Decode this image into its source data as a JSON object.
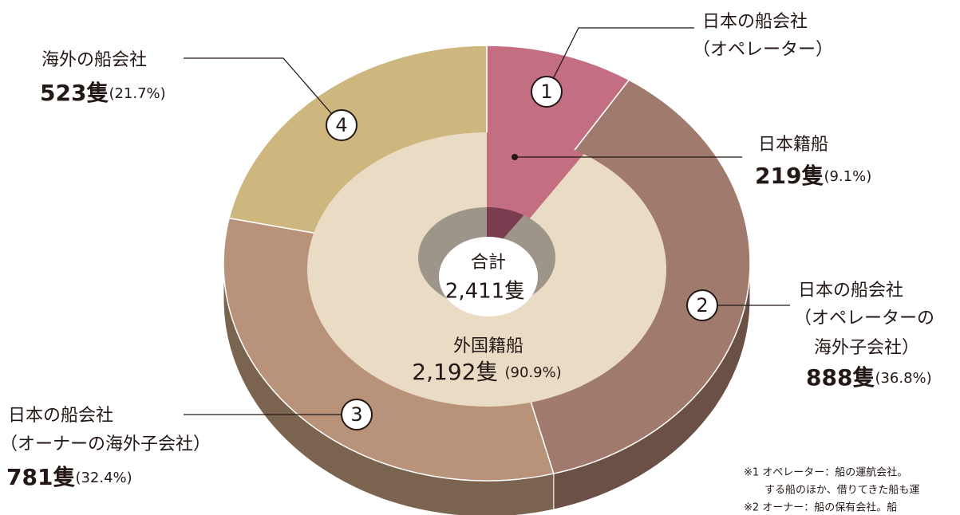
{
  "chart_data": {
    "type": "donut",
    "total_label": "合計",
    "total": 2411,
    "total_value_label": "2,411隻",
    "outer": {
      "markers": [
        "1",
        "2",
        "3",
        "4"
      ],
      "labels": [
        [
          "日本の船会社",
          "（オペレーター）"
        ],
        [
          "日本の船会社",
          "（オペレーターの",
          "海外子会社）"
        ],
        [
          "日本の船会社",
          "（オーナーの海外子会社）"
        ],
        [
          "海外の船会社"
        ]
      ],
      "values": [
        219,
        888,
        781,
        523
      ],
      "value_labels": [
        null,
        "888隻",
        "781隻",
        "523隻"
      ],
      "shares": [
        9.1,
        36.8,
        32.4,
        21.7
      ],
      "share_labels": [
        null,
        "(36.8%)",
        "(32.4%)",
        "(21.7%)"
      ],
      "colors": [
        "#c46e82",
        "#a07a6c",
        "#b8937a",
        "#cdb77f"
      ],
      "side_colors": [
        "#8a4a5a",
        "#6b5045",
        "#7a6450",
        "#8e7e55"
      ]
    },
    "inner": {
      "labels": [
        "日本籍船",
        "外国籍船"
      ],
      "values": [
        219,
        2192
      ],
      "value_labels": [
        "219隻",
        "2,192隻"
      ],
      "shares": [
        9.1,
        90.9
      ],
      "share_labels": [
        "(9.1%)",
        "(90.9%)"
      ],
      "colors": [
        "#c46e82",
        "#eadbc4"
      ],
      "hole_colors": [
        "#7a3d4f",
        "#9e958a"
      ]
    },
    "notes": [
      "※1 オペレーター：船の運航会社。",
      "する船のほか、借りてきた船も運",
      "※2 オーナー：船の保有会社。船"
    ]
  }
}
